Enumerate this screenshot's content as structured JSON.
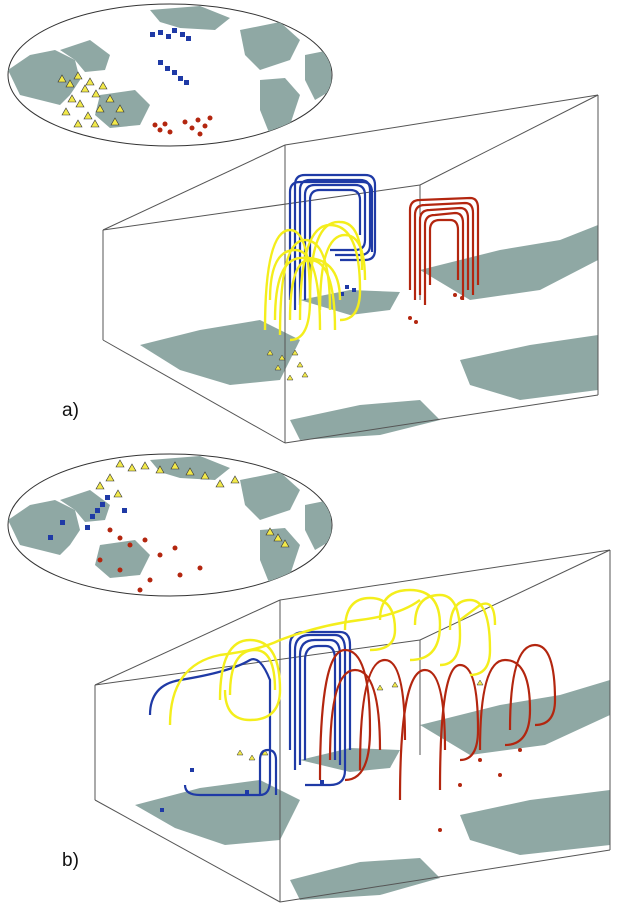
{
  "panels": [
    {
      "id": "a",
      "label": "a)"
    },
    {
      "id": "b",
      "label": "b)"
    }
  ],
  "colors": {
    "land": "#8fa8a4",
    "ocean": "#ffffff",
    "outline": "#333333",
    "box_edge": "#555555",
    "yellow": "#f4ee1c",
    "yellow_marker": "#f2e94a",
    "blue": "#1f3aa6",
    "red": "#b3260f"
  },
  "icons": {
    "yellow_marker": "triangle-icon",
    "blue_marker": "square-icon",
    "red_marker": "circle-icon"
  }
}
